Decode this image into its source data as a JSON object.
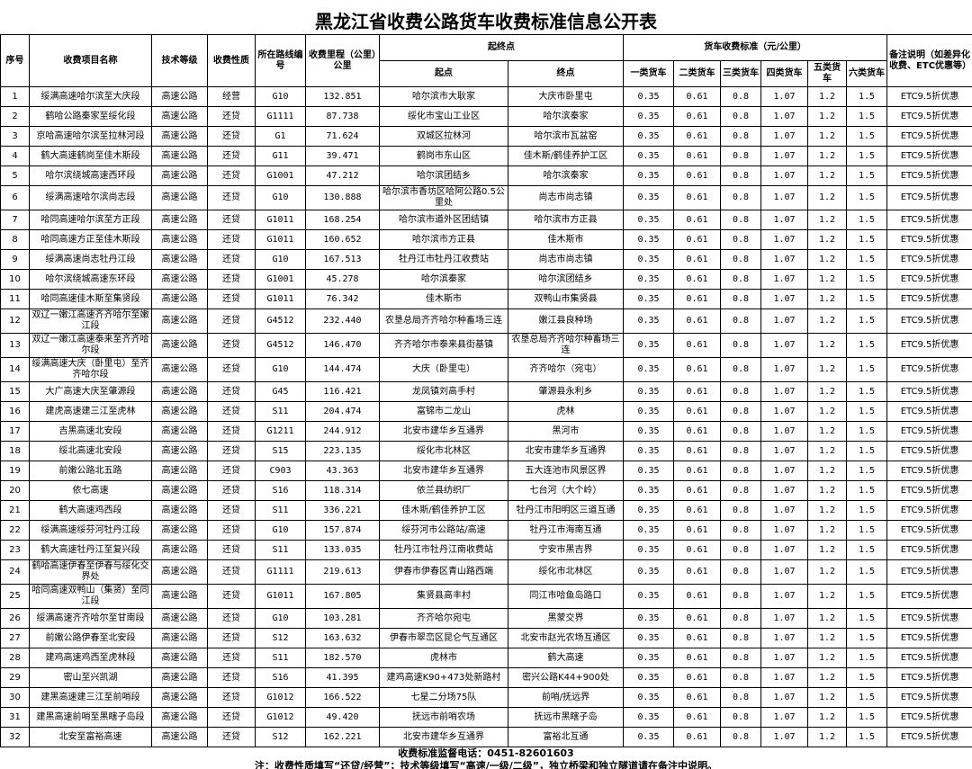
{
  "title": "黑龙江省收费公路货车收费标准信息公开表",
  "table": {
    "headers": {
      "seq": "序号",
      "name": "收费项目名称",
      "tech": "技术等级",
      "nature": "收费性质",
      "route": "所在路线编号",
      "mileage": "收费里程（公里）公里",
      "endpoints": "起终点",
      "start": "起点",
      "end": "终点",
      "rates": "货车收费标准（元/公里）",
      "class1": "一类货车",
      "class2": "二类货车",
      "class3": "三类货车",
      "class4": "四类货车",
      "class5": "五类货车",
      "class6": "六类货车",
      "remark": "备注说明（如差异化收费、ETC优惠等）"
    },
    "rows": [
      [
        "1",
        "绥满高速哈尔滨至大庆段",
        "高速公路",
        "经营",
        "G10",
        "132.851",
        "哈尔滨市大耿家",
        "大庆市卧里屯",
        "0.35",
        "0.61",
        "0.8",
        "1.07",
        "1.2",
        "1.5",
        "ETC9.5折优惠"
      ],
      [
        "2",
        "鹤哈公路秦家至绥化段",
        "高速公路",
        "还贷",
        "G1111",
        "87.738",
        "绥化市宝山工业区",
        "哈尔滨秦家",
        "0.35",
        "0.61",
        "0.8",
        "1.07",
        "1.2",
        "1.5",
        "ETC9.5折优惠"
      ],
      [
        "3",
        "京哈高速哈尔滨至拉林河段",
        "高速公路",
        "还贷",
        "G1",
        "71.624",
        "双城区拉林河",
        "哈尔滨市瓦盆窑",
        "0.35",
        "0.61",
        "0.8",
        "1.07",
        "1.2",
        "1.5",
        "ETC9.5折优惠"
      ],
      [
        "4",
        "鹤大高速鹤岗至佳木斯段",
        "高速公路",
        "还贷",
        "G11",
        "39.471",
        "鹤岗市东山区",
        "佳木斯/鹤佳养护工区",
        "0.35",
        "0.61",
        "0.8",
        "1.07",
        "1.2",
        "1.5",
        "ETC9.5折优惠"
      ],
      [
        "5",
        "哈尔滨绕城高速西环段",
        "高速公路",
        "还贷",
        "G1001",
        "47.212",
        "哈尔滨团结乡",
        "哈尔滨秦家",
        "0.35",
        "0.61",
        "0.8",
        "1.07",
        "1.2",
        "1.5",
        "ETC9.5折优惠"
      ],
      [
        "6",
        "绥满高速哈尔滨尚志段",
        "高速公路",
        "还贷",
        "G10",
        "130.888",
        "哈尔滨市香坊区哈阿公路0.5公里处",
        "尚志市尚志镇",
        "0.35",
        "0.61",
        "0.8",
        "1.07",
        "1.2",
        "1.5",
        "ETC9.5折优惠"
      ],
      [
        "7",
        "哈同高速哈尔滨至方正段",
        "高速公路",
        "还贷",
        "G1011",
        "168.254",
        "哈尔滨市道外区团结镇",
        "哈尔滨市方正县",
        "0.35",
        "0.61",
        "0.8",
        "1.07",
        "1.2",
        "1.5",
        "ETC9.5折优惠"
      ],
      [
        "8",
        "哈同高速方正至佳木斯段",
        "高速公路",
        "还贷",
        "G1011",
        "160.652",
        "哈尔滨市方正县",
        "佳木斯市",
        "0.35",
        "0.61",
        "0.8",
        "1.07",
        "1.2",
        "1.5",
        "ETC9.5折优惠"
      ],
      [
        "9",
        "绥满高速尚志牡丹江段",
        "高速公路",
        "还贷",
        "G10",
        "167.513",
        "牡丹江市牡丹江收费站",
        "尚志市尚志镇",
        "0.35",
        "0.61",
        "0.8",
        "1.07",
        "1.2",
        "1.5",
        "ETC9.5折优惠"
      ],
      [
        "10",
        "哈尔滨绕城高速东环段",
        "高速公路",
        "还贷",
        "G1001",
        "45.278",
        "哈尔滨秦家",
        "哈尔滨团结乡",
        "0.35",
        "0.61",
        "0.8",
        "1.07",
        "1.2",
        "1.5",
        "ETC9.5折优惠"
      ],
      [
        "11",
        "哈同高速佳木斯至集贤段",
        "高速公路",
        "还贷",
        "G1011",
        "76.342",
        "佳木斯市",
        "双鸭山市集贤县",
        "0.35",
        "0.61",
        "0.8",
        "1.07",
        "1.2",
        "1.5",
        "ETC9.5折优惠"
      ],
      [
        "12",
        "双辽一嫩江高速齐齐哈尔至嫩江段",
        "高速公路",
        "还贷",
        "G4512",
        "232.440",
        "农垦总局齐齐哈尔种畜场三连",
        "嫩江县良种场",
        "0.35",
        "0.61",
        "0.8",
        "1.07",
        "1.2",
        "1.5",
        "ETC9.5折优惠"
      ],
      [
        "13",
        "双辽一嫩江高速泰来至齐齐哈尔段",
        "高速公路",
        "还贷",
        "G4512",
        "146.470",
        "齐齐哈尔市泰来县街基镇",
        "农垦总局齐齐哈尔种畜场三连",
        "0.35",
        "0.61",
        "0.8",
        "1.07",
        "1.2",
        "1.5",
        "ETC9.5折优惠"
      ],
      [
        "14",
        "绥满高速大庆（卧里屯）至齐齐哈尔段",
        "高速公路",
        "还贷",
        "G10",
        "144.474",
        "大庆（卧里屯）",
        "齐齐哈尔（宛屯）",
        "0.35",
        "0.61",
        "0.8",
        "1.07",
        "1.2",
        "1.5",
        "ETC9.5折优惠"
      ],
      [
        "15",
        "大广高速大庆至肇源段",
        "高速公路",
        "还贷",
        "G45",
        "116.421",
        "龙凤镇刘高手村",
        "肇源县永利乡",
        "0.35",
        "0.61",
        "0.8",
        "1.07",
        "1.2",
        "1.5",
        "ETC9.5折优惠"
      ],
      [
        "16",
        "建虎高速建三江至虎林",
        "高速公路",
        "还贷",
        "S11",
        "204.474",
        "富锦市二龙山",
        "虎林",
        "0.35",
        "0.61",
        "0.8",
        "1.07",
        "1.2",
        "1.5",
        "ETC9.5折优惠"
      ],
      [
        "17",
        "吉黑高速北安段",
        "高速公路",
        "还贷",
        "G1211",
        "244.912",
        "北安市建华乡互通界",
        "黑河市",
        "0.35",
        "0.61",
        "0.8",
        "1.07",
        "1.2",
        "1.5",
        "ETC9.5折优惠"
      ],
      [
        "18",
        "绥北高速北安段",
        "高速公路",
        "还贷",
        "S15",
        "223.135",
        "绥化市北林区",
        "北安市建华乡互通界",
        "0.35",
        "0.61",
        "0.8",
        "1.07",
        "1.2",
        "1.5",
        "ETC9.5折优惠"
      ],
      [
        "19",
        "前嫩公路北五路",
        "高速公路",
        "还贷",
        "C903",
        "43.363",
        "北安市建华乡互通界",
        "五大连池市风景区界",
        "0.35",
        "0.61",
        "0.8",
        "1.07",
        "1.2",
        "1.5",
        "ETC9.5折优惠"
      ],
      [
        "20",
        "依七高速",
        "高速公路",
        "还贷",
        "S16",
        "118.314",
        "依兰县纺织厂",
        "七台河（大个岭）",
        "0.35",
        "0.61",
        "0.8",
        "1.07",
        "1.2",
        "1.5",
        "ETC9.5折优惠"
      ],
      [
        "21",
        "鹤大高速鸡西段",
        "高速公路",
        "还贷",
        "S11",
        "336.221",
        "佳木斯/鹤佳养护工区",
        "牡丹江市阳明区三道互通",
        "0.35",
        "0.61",
        "0.8",
        "1.07",
        "1.2",
        "1.5",
        "ETC9.5折优惠"
      ],
      [
        "22",
        "绥满高速绥芬河牡丹江段",
        "高速公路",
        "还贷",
        "G10",
        "157.874",
        "绥芬河市公路站/高速",
        "牡丹江市海南互通",
        "0.35",
        "0.61",
        "0.8",
        "1.07",
        "1.2",
        "1.5",
        "ETC9.5折优惠"
      ],
      [
        "23",
        "鹤大高速牡丹江至复兴段",
        "高速公路",
        "还贷",
        "S11",
        "133.035",
        "牡丹江市牡丹江南收费站",
        "宁安市黑吉界",
        "0.35",
        "0.61",
        "0.8",
        "1.07",
        "1.2",
        "1.5",
        "ETC9.5折优惠"
      ],
      [
        "24",
        "鹤哈高速伊春至伊春与绥化交界处",
        "高速公路",
        "还贷",
        "G1111",
        "219.613",
        "伊春市伊春区青山路西端",
        "绥化市北林区",
        "0.35",
        "0.61",
        "0.8",
        "1.07",
        "1.2",
        "1.5",
        "ETC9.5折优惠"
      ],
      [
        "25",
        "哈同高速双鸭山（集贤）至同江段",
        "高速公路",
        "还贷",
        "G1011",
        "167.805",
        "集贤县高丰村",
        "同江市哈鱼岛路口",
        "0.35",
        "0.61",
        "0.8",
        "1.07",
        "1.2",
        "1.5",
        "ETC9.5折优惠"
      ],
      [
        "26",
        "绥满高速齐齐哈尔至甘南段",
        "高速公路",
        "还贷",
        "G10",
        "103.281",
        "齐齐哈尔宛屯",
        "黑蒙交界",
        "0.35",
        "0.61",
        "0.8",
        "1.07",
        "1.2",
        "1.5",
        "ETC9.5折优惠"
      ],
      [
        "27",
        "前嫩公路伊春至北安段",
        "高速公路",
        "还贷",
        "S12",
        "163.632",
        "伊春市翠峦区昆仑气互通区",
        "北安市赵光农场互通区",
        "0.35",
        "0.61",
        "0.8",
        "1.07",
        "1.2",
        "1.5",
        "ETC9.5折优惠"
      ],
      [
        "28",
        "建鸡高速鸡西至虎林段",
        "高速公路",
        "还贷",
        "S11",
        "182.570",
        "虎林市",
        "鹤大高速",
        "0.35",
        "0.61",
        "0.8",
        "1.07",
        "1.2",
        "1.5",
        "ETC9.5折优惠"
      ],
      [
        "29",
        "密山至兴凯湖",
        "高速公路",
        "还贷",
        "S16",
        "41.395",
        "建鸡高速K90+473处新路村",
        "密兴公路K44+900处",
        "0.35",
        "0.61",
        "0.8",
        "1.07",
        "1.2",
        "1.5",
        "ETC9.5折优惠"
      ],
      [
        "30",
        "建黑高速建三江至前哨段",
        "高速公路",
        "还贷",
        "G1012",
        "166.522",
        "七星二分场75队",
        "前哨/抚远界",
        "0.35",
        "0.61",
        "0.8",
        "1.07",
        "1.2",
        "1.5",
        "ETC9.5折优惠"
      ],
      [
        "31",
        "建黑高速前哨至黑瞎子岛段",
        "高速公路",
        "还贷",
        "G1012",
        "49.420",
        "抚远市前哨农场",
        "抚远市黑瞎子岛",
        "0.35",
        "0.61",
        "0.8",
        "1.07",
        "1.2",
        "1.5",
        "ETC9.5折优惠"
      ],
      [
        "32",
        "北安至富裕高速",
        "高速公路",
        "还贷",
        "S12",
        "162.221",
        "北安市建华乡互通界",
        "富裕北互通",
        "0.35",
        "0.61",
        "0.8",
        "1.07",
        "1.2",
        "1.5",
        "ETC9.5折优惠"
      ]
    ]
  },
  "footer": {
    "phone": "收费标准监督电话：0451-82601603",
    "note": "注：收费性质填写“还贷/经营”；技术等级填写“高速/一级/二级”，独立桥梁和独立隧道请在备注中说明。"
  }
}
